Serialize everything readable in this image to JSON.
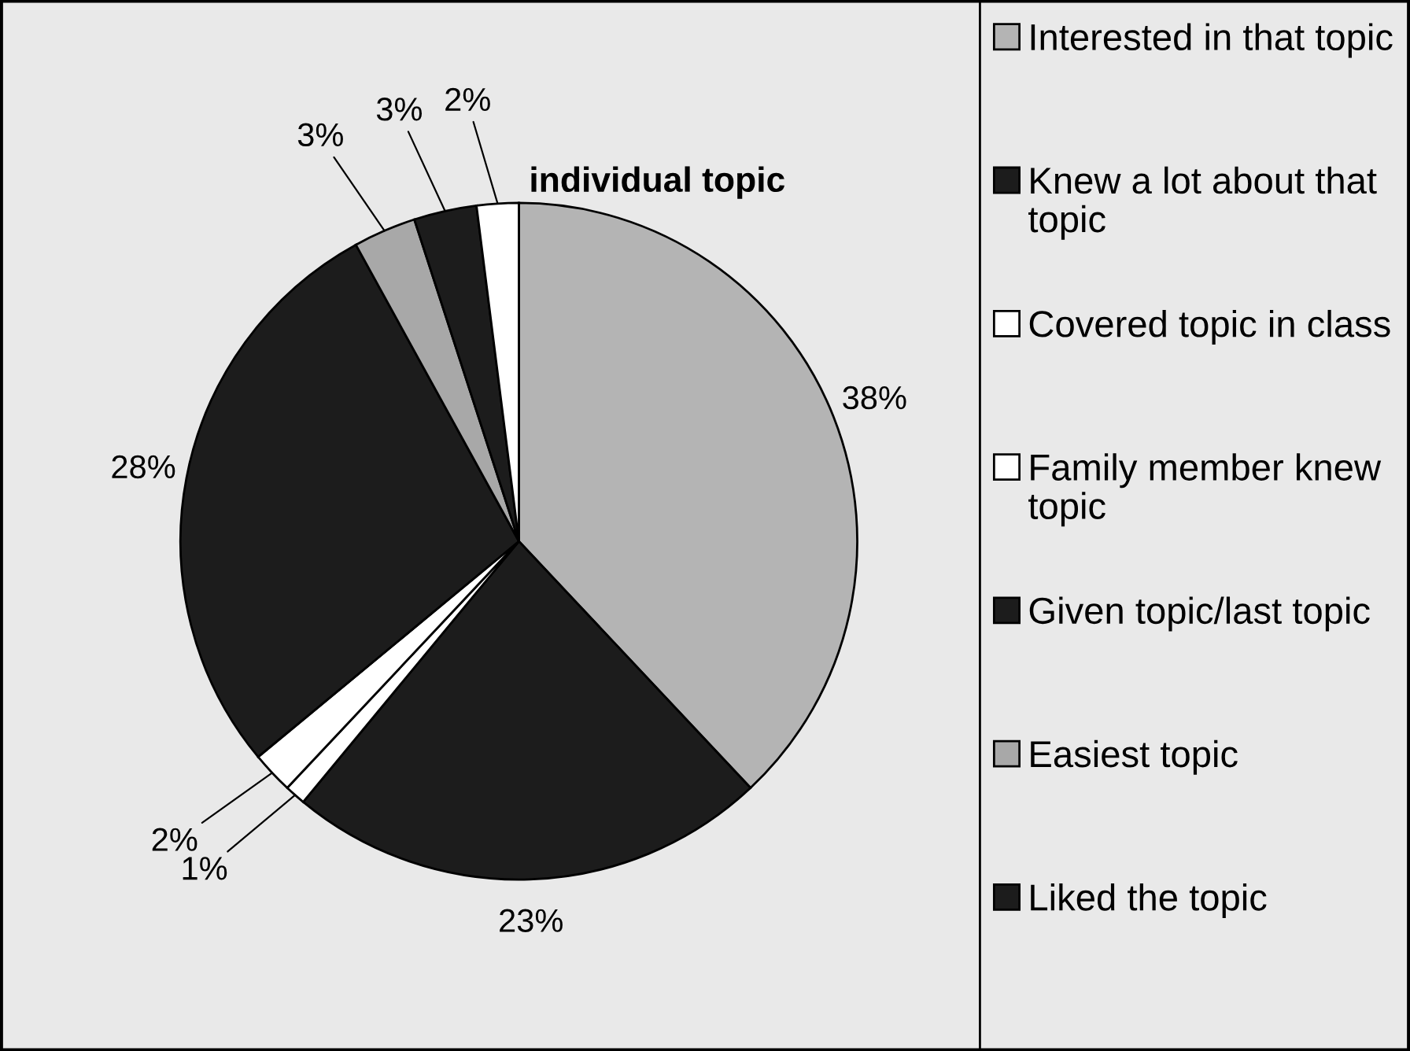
{
  "chart_data": {
    "type": "pie",
    "title": "individual topic",
    "categories": [
      "Interested in that topic",
      "Knew a lot about that topic",
      "Covered topic in class",
      "Family member knew topic",
      "Given topic/last topic",
      "Easiest topic",
      "Liked the topic",
      null
    ],
    "values": [
      38,
      23,
      1,
      2,
      28,
      3,
      3,
      2
    ],
    "colors": [
      "#b4b4b4",
      "#1c1c1c",
      "#ffffff",
      "#ffffff",
      "#1c1c1c",
      "#a8a8a8",
      "#1c1c1c",
      "#ffffff"
    ],
    "value_labels": [
      "38%",
      "23%",
      "1%",
      "2%",
      "28%",
      "3%",
      "3%",
      "2%"
    ],
    "legend": "right"
  }
}
